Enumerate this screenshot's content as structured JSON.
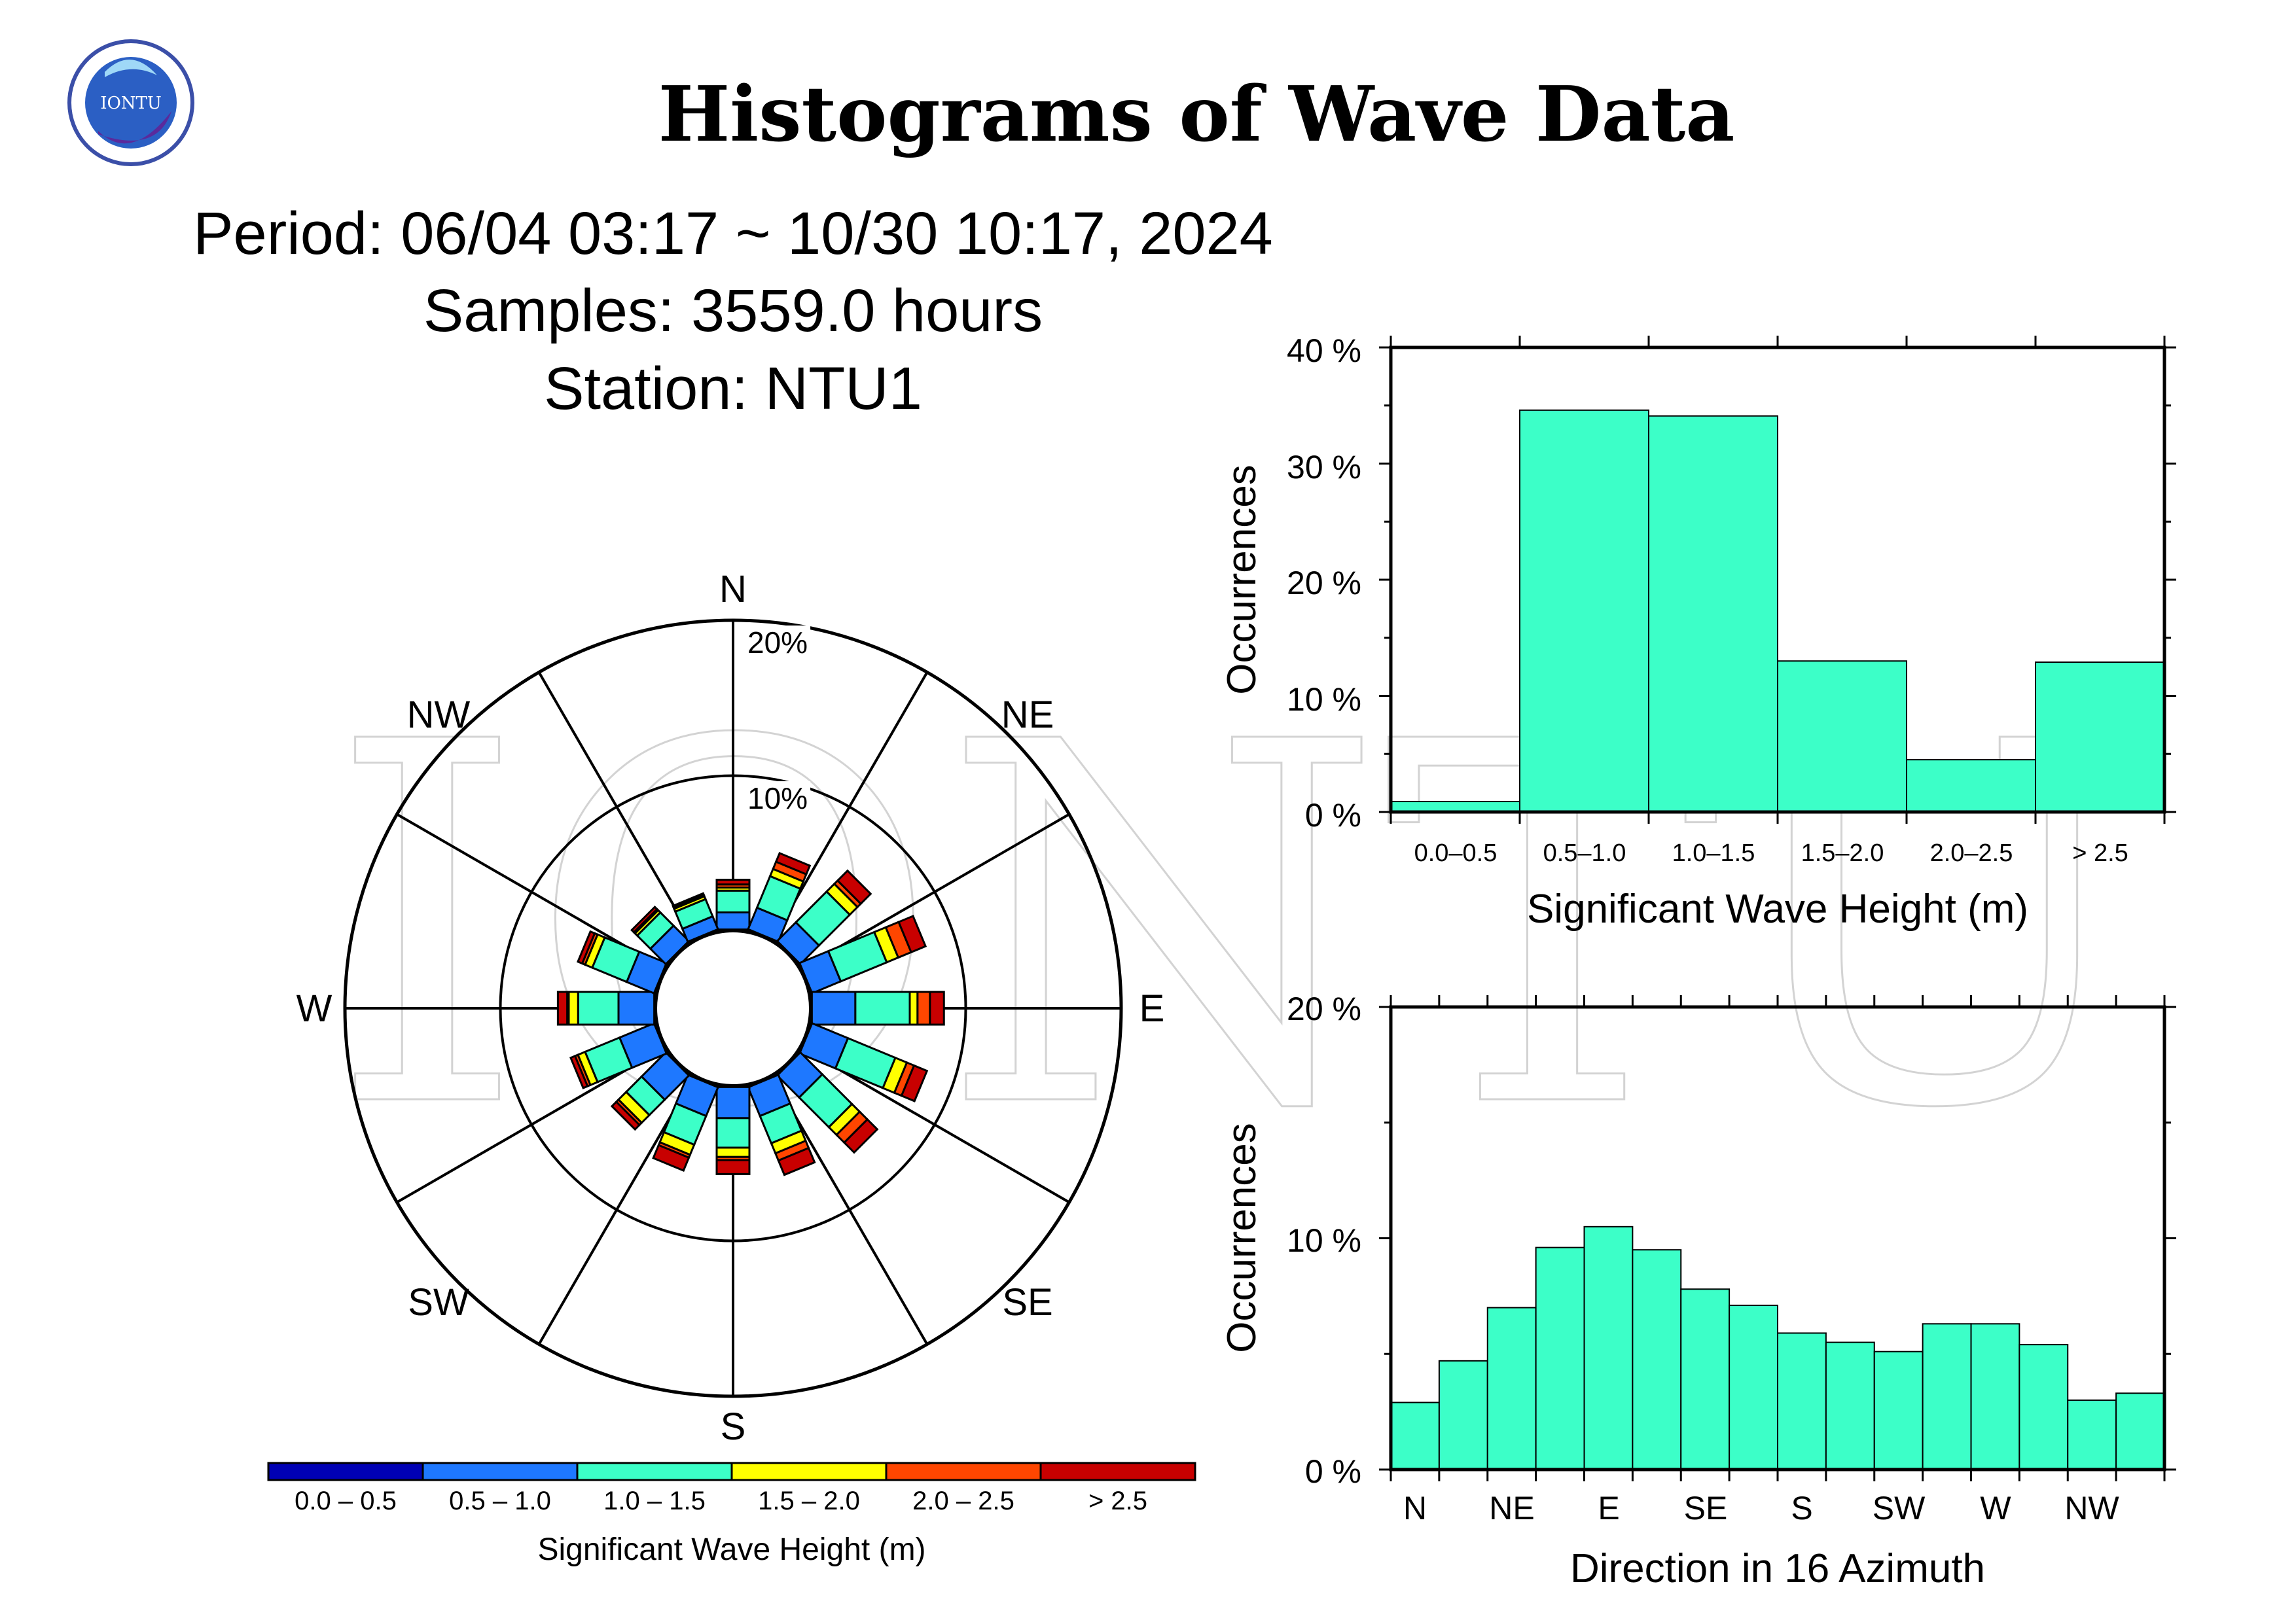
{
  "title": "Histograms of Wave Data",
  "period": "Period: 06/04 03:17 ~ 10/30 10:17, 2024",
  "samples": "Samples: 3559.0 hours",
  "station": "Station: NTU1",
  "logo_text": "IONTU",
  "watermark_text": "IONTU",
  "colors": {
    "bins": [
      "#0000b4",
      "#1e78ff",
      "#3cffc8",
      "#ffff00",
      "#ff4600",
      "#c80000"
    ],
    "bar_fill": "#3cffc8"
  },
  "chart_data": [
    {
      "type": "rose",
      "direction_labels": [
        "N",
        "NE",
        "E",
        "SE",
        "S",
        "SW",
        "W",
        "NW"
      ],
      "ring_labels": [
        "20%",
        "10%"
      ],
      "rings": [
        10,
        20
      ],
      "directions": [
        "N",
        "NNE",
        "NE",
        "ENE",
        "E",
        "ESE",
        "SE",
        "SSE",
        "S",
        "SSW",
        "SW",
        "WSW",
        "W",
        "WNW",
        "NW",
        "NNW"
      ],
      "bins": [
        "0.0 – 0.5",
        "0.5 – 1.0",
        "1.0 – 1.5",
        "1.5 – 2.0",
        "2.0 – 2.5",
        "> 2.5"
      ],
      "values": [
        [
          0.1,
          1.1,
          1.4,
          0.2,
          0.2,
          0.3
        ],
        [
          0.1,
          1.5,
          2.2,
          0.5,
          0.5,
          0.6
        ],
        [
          0.1,
          1.7,
          2.8,
          0.7,
          0.3,
          0.9
        ],
        [
          0.1,
          2.0,
          3.2,
          0.8,
          0.9,
          1.0
        ],
        [
          0.1,
          2.8,
          3.5,
          0.5,
          0.8,
          0.9
        ],
        [
          0.1,
          2.5,
          3.3,
          0.8,
          0.5,
          0.9
        ],
        [
          0.1,
          2.0,
          2.7,
          0.7,
          0.7,
          0.9
        ],
        [
          0.1,
          2.0,
          1.9,
          0.7,
          0.5,
          1.0
        ],
        [
          0.1,
          2.0,
          1.9,
          0.6,
          0.2,
          0.9
        ],
        [
          0.1,
          2.0,
          2.0,
          0.7,
          0.2,
          0.9
        ],
        [
          0.1,
          2.2,
          1.4,
          0.7,
          0.2,
          0.4
        ],
        [
          0.1,
          2.4,
          2.4,
          0.5,
          0.2,
          0.3
        ],
        [
          0.1,
          2.3,
          2.6,
          0.6,
          0.1,
          0.6
        ],
        [
          0.1,
          1.9,
          2.4,
          0.5,
          0.2,
          0.3
        ],
        [
          0.1,
          1.4,
          1.2,
          0.2,
          0.1,
          0.2
        ],
        [
          0.1,
          0.9,
          1.2,
          0.2,
          0.1,
          0.1
        ]
      ],
      "colorbar_labels": [
        "0.0 – 0.5",
        "0.5 – 1.0",
        "1.0 – 1.5",
        "1.5 – 2.0",
        "2.0 – 2.5",
        "> 2.5"
      ],
      "colorbar_title": "Significant Wave Height (m)"
    },
    {
      "type": "bar",
      "categories": [
        "0.0–0.5",
        "0.5–1.0",
        "1.0–1.5",
        "1.5–2.0",
        "2.0–2.5",
        "> 2.5"
      ],
      "values": [
        0.9,
        34.6,
        34.1,
        13.0,
        4.5,
        12.9
      ],
      "ylim": [
        0,
        40
      ],
      "yticks": [
        "0 %",
        "10 %",
        "20 %",
        "30 %",
        "40 %"
      ],
      "ylabel": "Occurrences",
      "xlabel": "Significant Wave Height (m)"
    },
    {
      "type": "bar",
      "categories": [
        "N",
        "NNE",
        "NE",
        "ENE",
        "E",
        "ESE",
        "SE",
        "SSE",
        "S",
        "SSW",
        "SW",
        "WSW",
        "W",
        "WNW",
        "NW",
        "NNW"
      ],
      "tick_labels": [
        "N",
        "NE",
        "E",
        "SE",
        "S",
        "SW",
        "W",
        "NW"
      ],
      "values": [
        2.9,
        4.7,
        7.0,
        9.6,
        10.5,
        9.5,
        7.8,
        7.1,
        5.9,
        5.5,
        5.1,
        6.3,
        6.3,
        5.4,
        3.0,
        3.3
      ],
      "ylim": [
        0,
        20
      ],
      "yticks": [
        "0 %",
        "10 %",
        "20 %"
      ],
      "ylabel": "Occurrences",
      "xlabel": "Direction in 16 Azimuth"
    }
  ]
}
